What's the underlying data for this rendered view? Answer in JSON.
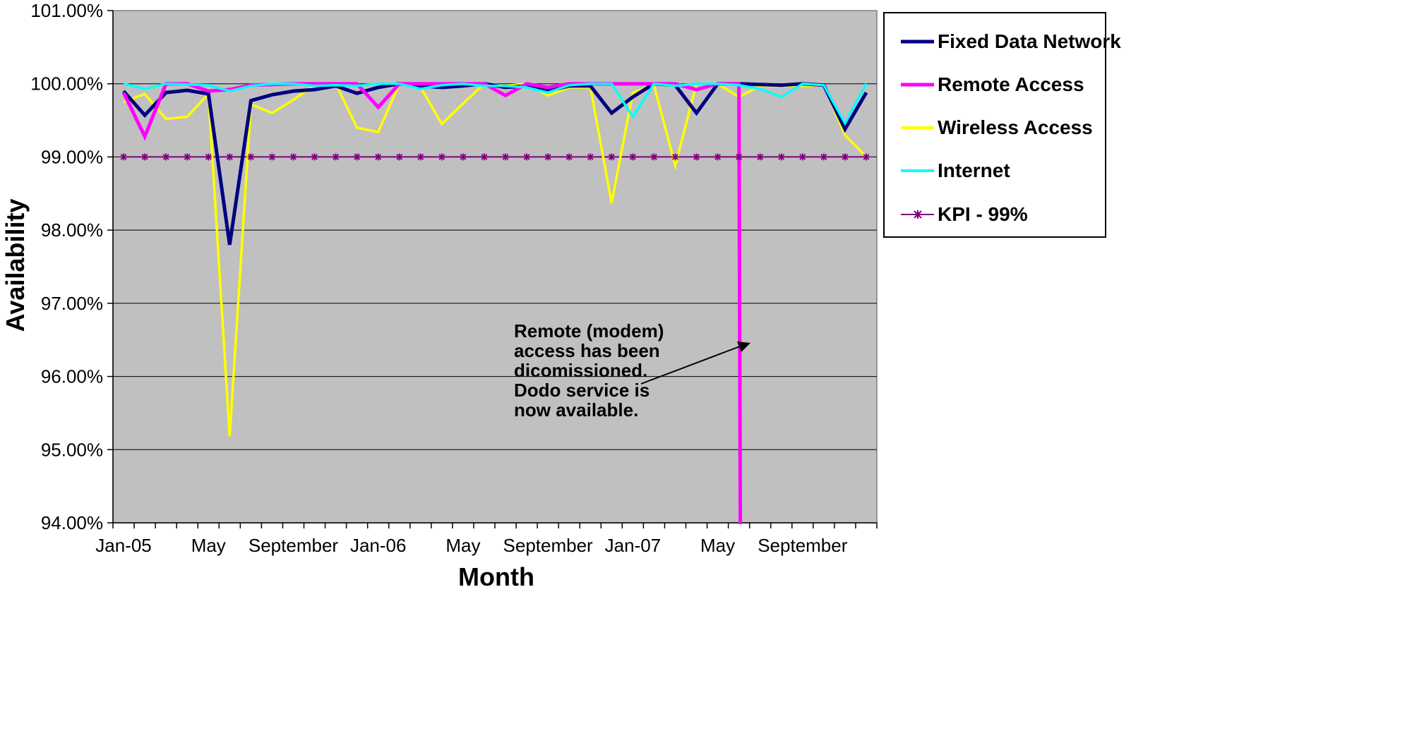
{
  "chart_data": {
    "type": "line",
    "title": "",
    "xlabel": "Month",
    "ylabel": "Availability",
    "ylim": [
      94,
      101
    ],
    "y_ticks": [
      "94.00%",
      "95.00%",
      "96.00%",
      "97.00%",
      "98.00%",
      "99.00%",
      "100.00%",
      "101.00%"
    ],
    "x_tick_labels": [
      "Jan-05",
      "May",
      "September",
      "Jan-06",
      "May",
      "September",
      "Jan-07",
      "May",
      "September"
    ],
    "x_tick_label_indices": [
      0,
      4,
      8,
      12,
      16,
      20,
      24,
      28,
      32
    ],
    "months": [
      "Jan-05",
      "Feb-05",
      "Mar-05",
      "Apr-05",
      "May-05",
      "Jun-05",
      "Jul-05",
      "Aug-05",
      "Sep-05",
      "Oct-05",
      "Nov-05",
      "Dec-05",
      "Jan-06",
      "Feb-06",
      "Mar-06",
      "Apr-06",
      "May-06",
      "Jun-06",
      "Jul-06",
      "Aug-06",
      "Sep-06",
      "Oct-06",
      "Nov-06",
      "Dec-06",
      "Jan-07",
      "Feb-07",
      "Mar-07",
      "Apr-07",
      "May-07",
      "Jun-07",
      "Jul-07",
      "Aug-07",
      "Sep-07",
      "Oct-07",
      "Nov-07",
      "Dec-07"
    ],
    "grid": true,
    "legend_position": "right",
    "series": [
      {
        "name": "Fixed Data Network",
        "color": "#000080",
        "width": 5,
        "values": [
          99.9,
          99.57,
          99.88,
          99.91,
          99.86,
          97.8,
          99.77,
          99.85,
          99.9,
          99.92,
          99.97,
          99.87,
          99.95,
          100.0,
          99.97,
          99.95,
          99.97,
          100.0,
          99.95,
          99.97,
          99.9,
          99.97,
          99.97,
          99.6,
          99.82,
          100.0,
          99.98,
          99.6,
          100.0,
          100.0,
          99.99,
          99.98,
          100.0,
          99.98,
          99.38,
          99.88
        ]
      },
      {
        "name": "Remote Access",
        "color": "#ff00ff",
        "width": 5,
        "values": [
          99.88,
          99.28,
          100.0,
          100.0,
          99.9,
          99.92,
          99.98,
          99.99,
          100.0,
          100.0,
          100.0,
          100.0,
          99.68,
          100.0,
          100.0,
          100.0,
          100.0,
          100.0,
          99.84,
          100.0,
          99.95,
          100.0,
          100.0,
          100.0,
          100.0,
          100.0,
          100.0,
          99.92,
          100.0,
          100.0,
          null,
          null,
          null,
          null,
          null,
          null
        ],
        "drop_to_bottom_after_index": 29
      },
      {
        "name": "Wireless Access",
        "color": "#ffff00",
        "width": 3.5,
        "values": [
          99.75,
          99.86,
          99.52,
          99.55,
          99.86,
          95.18,
          99.72,
          99.6,
          99.78,
          99.98,
          100.0,
          99.4,
          99.34,
          100.0,
          99.95,
          99.45,
          99.73,
          100.0,
          99.97,
          100.0,
          99.84,
          99.95,
          99.95,
          98.37,
          99.88,
          99.98,
          98.88,
          100.0,
          100.0,
          99.82,
          99.97,
          99.97,
          99.97,
          99.98,
          99.3,
          99.0
        ]
      },
      {
        "name": "Internet",
        "color": "#00ffff",
        "width": 3.5,
        "values": [
          100.0,
          99.93,
          100.0,
          99.99,
          99.98,
          99.9,
          99.97,
          100.0,
          100.0,
          99.97,
          99.98,
          99.97,
          100.0,
          100.0,
          99.93,
          99.98,
          100.0,
          99.97,
          99.97,
          99.95,
          99.88,
          99.98,
          100.0,
          100.0,
          99.55,
          100.0,
          99.97,
          100.0,
          100.0,
          99.98,
          99.93,
          99.82,
          100.0,
          99.98,
          99.46,
          100.0
        ]
      },
      {
        "name": "KPI - 99%",
        "color": "#800080",
        "width": 2,
        "marker": "asterisk",
        "values": [
          99,
          99,
          99,
          99,
          99,
          99,
          99,
          99,
          99,
          99,
          99,
          99,
          99,
          99,
          99,
          99,
          99,
          99,
          99,
          99,
          99,
          99,
          99,
          99,
          99,
          99,
          99,
          99,
          99,
          99,
          99,
          99,
          99,
          99,
          99,
          99
        ]
      }
    ],
    "annotations": [
      {
        "lines": [
          "Remote (modem)",
          "access has been",
          "dicomissioned.",
          "Dodo service is",
          "now available."
        ]
      }
    ]
  }
}
